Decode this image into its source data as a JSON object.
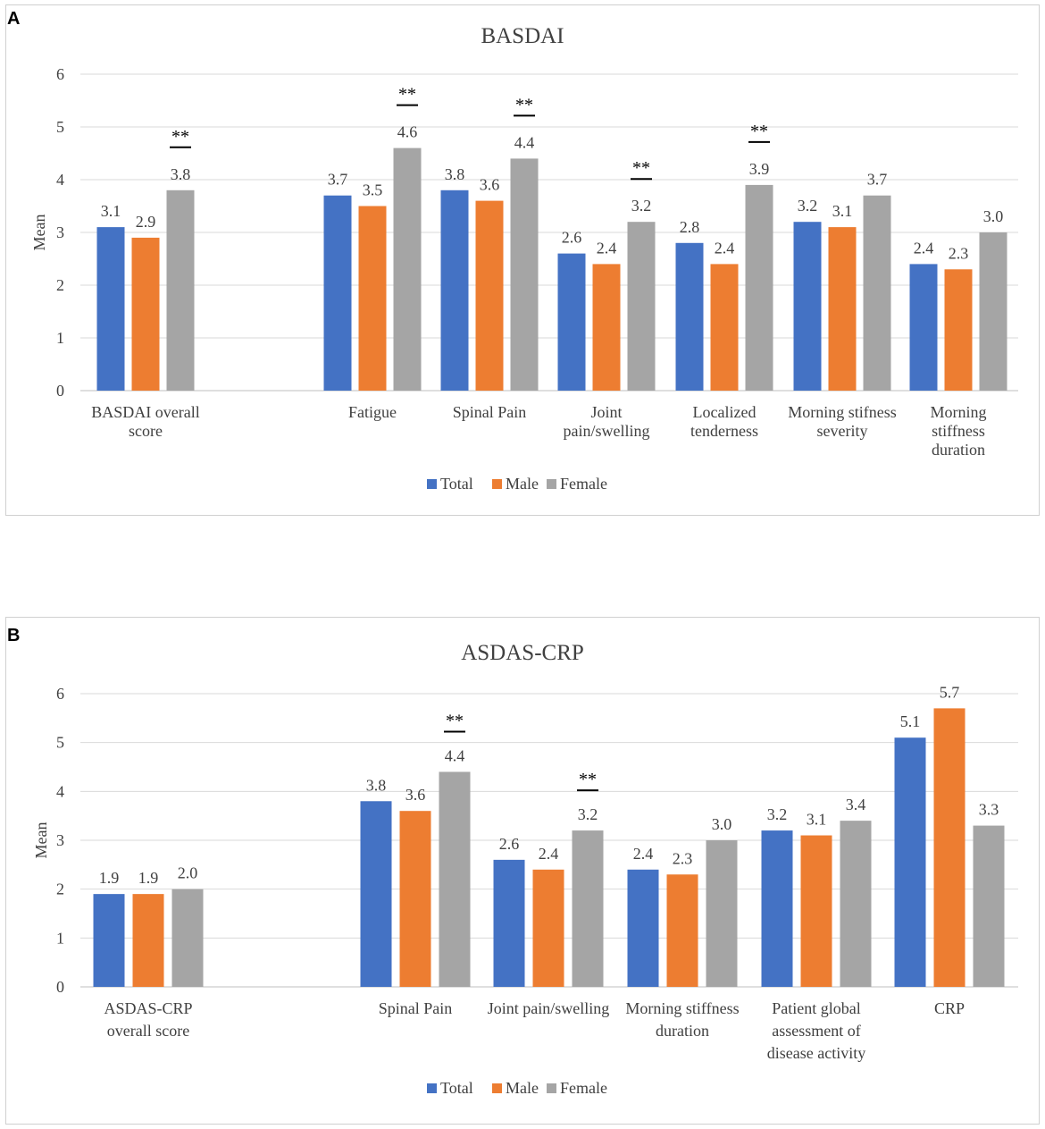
{
  "panels": [
    {
      "letter": "A",
      "colors": {
        "Total": "#4472c4",
        "Male": "#ed7d31",
        "Female": "#a5a5a5"
      },
      "chart_data": {
        "type": "bar",
        "title": "BASDAI",
        "ylabel": "Mean",
        "xlabel": "",
        "ylim": [
          0,
          6
        ],
        "yticks": [
          "0",
          "1",
          "2",
          "3",
          "4",
          "5",
          "6"
        ],
        "categories": [
          [
            "BASDAI overall",
            "score"
          ],
          [
            "Fatigue"
          ],
          [
            "Spinal Pain"
          ],
          [
            "Joint",
            "pain/swelling"
          ],
          [
            "Localized",
            "tenderness"
          ],
          [
            "Morning stifness",
            "severity"
          ],
          [
            "Morning",
            "stiffness",
            "duration"
          ]
        ],
        "series": [
          {
            "name": "Total",
            "values": [
              3.1,
              3.7,
              3.8,
              2.6,
              2.8,
              3.2,
              2.4
            ],
            "labels": [
              "3.1",
              "3.7",
              "3.8",
              "2.6",
              "2.8",
              "3.2",
              "2.4"
            ]
          },
          {
            "name": "Male",
            "values": [
              2.9,
              3.5,
              3.6,
              2.4,
              2.4,
              3.1,
              2.3
            ],
            "labels": [
              "2.9",
              "3.5",
              "3.6",
              "2.4",
              "2.4",
              "3.1",
              "2.3"
            ]
          },
          {
            "name": "Female",
            "values": [
              3.8,
              4.6,
              4.4,
              3.2,
              3.9,
              3.7,
              3.0
            ],
            "labels": [
              "3.8",
              "4.6",
              "4.4",
              "3.2",
              "3.9",
              "3.7",
              "3.0"
            ]
          }
        ],
        "significance": {
          "marker": "**",
          "categories": [
            0,
            1,
            2,
            3,
            4
          ]
        },
        "legend": "bottom"
      }
    },
    {
      "letter": "B",
      "colors": {
        "Total": "#4472c4",
        "Male": "#ed7d31",
        "Female": "#a5a5a5"
      },
      "chart_data": {
        "type": "bar",
        "title": "ASDAS-CRP",
        "ylabel": "Mean",
        "xlabel": "",
        "ylim": [
          0,
          6
        ],
        "yticks": [
          "0",
          "1",
          "2",
          "3",
          "4",
          "5",
          "6"
        ],
        "categories": [
          [
            "ASDAS-CRP",
            "overall score"
          ],
          [
            "Spinal Pain"
          ],
          [
            "Joint pain/swelling"
          ],
          [
            "Morning stiffness",
            "duration"
          ],
          [
            "Patient global",
            "assessment of",
            "disease activity"
          ],
          [
            "CRP"
          ]
        ],
        "series": [
          {
            "name": "Total",
            "values": [
              1.9,
              3.8,
              2.6,
              2.4,
              3.2,
              5.1
            ],
            "labels": [
              "1.9",
              "3.8",
              "2.6",
              "2.4",
              "3.2",
              "5.1"
            ]
          },
          {
            "name": "Male",
            "values": [
              1.9,
              3.6,
              2.4,
              2.3,
              3.1,
              5.7
            ],
            "labels": [
              "1.9",
              "3.6",
              "2.4",
              "2.3",
              "3.1",
              "5.7"
            ]
          },
          {
            "name": "Female",
            "values": [
              2.0,
              4.4,
              3.2,
              3.0,
              3.4,
              3.3
            ],
            "labels": [
              "2.0",
              "4.4",
              "3.2",
              "3.0",
              "3.4",
              "3.3"
            ]
          }
        ],
        "significance": {
          "marker": "**",
          "categories": [
            1,
            2
          ]
        },
        "legend": "bottom"
      }
    }
  ]
}
